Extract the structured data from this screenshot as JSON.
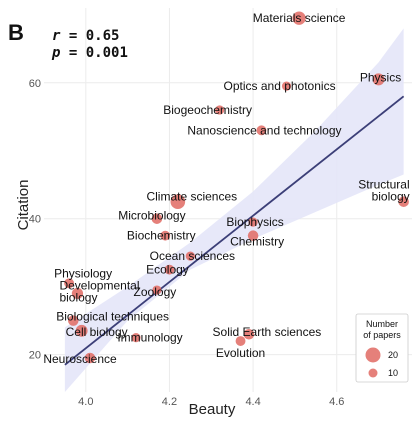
{
  "panel_letter": "B",
  "stats": {
    "r_label": "r",
    "r_value": "= 0.65",
    "p_label": "p",
    "p_value": "= 0.001"
  },
  "chart_data": {
    "type": "scatter",
    "xlabel": "Beauty",
    "ylabel": "Citation",
    "xlim": [
      3.9,
      4.78
    ],
    "ylim": [
      14.5,
      71
    ],
    "xticks": [
      4.0,
      4.2,
      4.4,
      4.6
    ],
    "xtick_labels": [
      "4.0",
      "4.2",
      "4.4",
      "4.6"
    ],
    "yticks": [
      20,
      40,
      60
    ],
    "ytick_labels": [
      "20",
      "40",
      "60"
    ],
    "grid": true,
    "regression": {
      "x": [
        3.95,
        4.76
      ],
      "y": [
        18.5,
        58.0
      ]
    },
    "confidence_band": {
      "x": [
        3.95,
        4.1,
        4.25,
        4.4,
        4.55,
        4.7,
        4.76
      ],
      "lower": [
        14.5,
        25.0,
        32.5,
        37.0,
        41.0,
        45.0,
        46.5
      ],
      "upper": [
        24.0,
        30.0,
        36.5,
        44.0,
        53.0,
        63.0,
        68.0
      ]
    },
    "points": [
      {
        "label": "Materials science",
        "x": 4.51,
        "y": 69.5,
        "size": 16
      },
      {
        "label": "Physics",
        "x": 4.7,
        "y": 60.5,
        "size": 14
      },
      {
        "label": "Optics and photonics",
        "x": 4.48,
        "y": 59.5,
        "size": 10
      },
      {
        "label": "Biogeochemistry",
        "x": 4.32,
        "y": 56.0,
        "size": 10
      },
      {
        "label": "Nanoscience and technology",
        "x": 4.42,
        "y": 53.0,
        "size": 11
      },
      {
        "label": "Structural biology",
        "x": 4.76,
        "y": 42.5,
        "size": 12
      },
      {
        "label": "Climate sciences",
        "x": 4.22,
        "y": 42.5,
        "size": 18
      },
      {
        "label": "Microbiology",
        "x": 4.17,
        "y": 40.0,
        "size": 12
      },
      {
        "label": "Biophysics",
        "x": 4.4,
        "y": 39.5,
        "size": 10
      },
      {
        "label": "Chemistry",
        "x": 4.4,
        "y": 37.5,
        "size": 12
      },
      {
        "label": "Biochemistry",
        "x": 4.19,
        "y": 37.5,
        "size": 11
      },
      {
        "label": "Ocean sciences",
        "x": 4.25,
        "y": 34.5,
        "size": 10
      },
      {
        "label": "Ecology",
        "x": 4.2,
        "y": 32.5,
        "size": 11
      },
      {
        "label": "Physiology",
        "x": 3.96,
        "y": 30.5,
        "size": 11
      },
      {
        "label": "Developmental biology",
        "x": 3.98,
        "y": 29.0,
        "size": 13
      },
      {
        "label": "Zoology",
        "x": 4.17,
        "y": 29.5,
        "size": 10
      },
      {
        "label": "Biological techniques",
        "x": 3.97,
        "y": 25.0,
        "size": 12
      },
      {
        "label": "Cell biology",
        "x": 3.99,
        "y": 23.5,
        "size": 14
      },
      {
        "label": "Immunology",
        "x": 4.12,
        "y": 22.5,
        "size": 10
      },
      {
        "label": "Solid Earth sciences",
        "x": 4.39,
        "y": 23.0,
        "size": 12
      },
      {
        "label": "Evolution",
        "x": 4.37,
        "y": 22.0,
        "size": 11
      },
      {
        "label": "Neuroscience",
        "x": 4.01,
        "y": 19.5,
        "size": 12
      }
    ],
    "legend": {
      "title_line1": "Number",
      "title_line2": "of papers",
      "entries": [
        {
          "label": "20",
          "size": 20
        },
        {
          "label": "10",
          "size": 10
        }
      ],
      "placement": "bottom-right"
    },
    "colors": {
      "point": "#e06a63",
      "line": "#3c3f78",
      "band": "#e4e6f8",
      "grid": "#ececec"
    }
  }
}
